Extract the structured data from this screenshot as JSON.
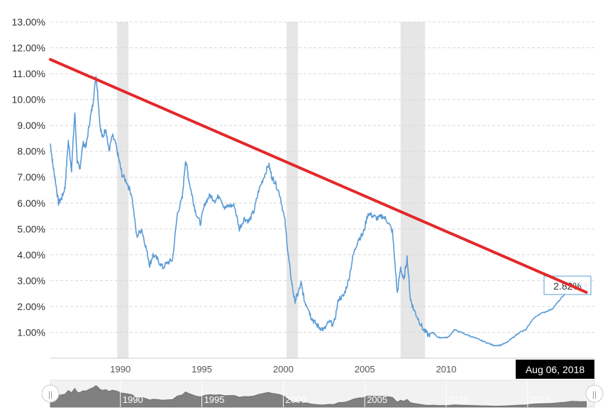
{
  "chart_data": {
    "type": "line",
    "title": "",
    "xlabel": "",
    "ylabel": "",
    "ylim": [
      0,
      13
    ],
    "xlim": [
      1985.7,
      2019.1
    ],
    "grid": "horizontal dashed",
    "y_ticks": [
      "1.00%",
      "2.00%",
      "3.00%",
      "4.00%",
      "5.00%",
      "6.00%",
      "7.00%",
      "8.00%",
      "9.00%",
      "10.00%",
      "11.00%",
      "12.00%",
      "13.00%"
    ],
    "x_ticks": [
      "1990",
      "1995",
      "2000",
      "2005",
      "2010"
    ],
    "recession_bands": [
      [
        1989.8,
        1990.5
      ],
      [
        2000.2,
        2000.9
      ],
      [
        2007.2,
        2008.7
      ]
    ],
    "series": [
      {
        "color": "#5b9bd5",
        "x": [
          1985.7,
          1985.85,
          1986.0,
          1986.2,
          1986.4,
          1986.6,
          1986.8,
          1987.0,
          1987.2,
          1987.35,
          1987.5,
          1987.7,
          1987.9,
          1988.1,
          1988.3,
          1988.5,
          1988.6,
          1988.75,
          1988.9,
          1989.1,
          1989.3,
          1989.5,
          1989.7,
          1989.9,
          1990.1,
          1990.4,
          1990.7,
          1991.0,
          1991.3,
          1991.6,
          1991.8,
          1992.0,
          1992.3,
          1992.6,
          1992.9,
          1993.2,
          1993.5,
          1993.8,
          1994.0,
          1994.2,
          1994.4,
          1994.6,
          1994.9,
          1995.2,
          1995.5,
          1995.8,
          1996.1,
          1996.4,
          1996.7,
          1997.0,
          1997.3,
          1997.6,
          1997.9,
          1998.2,
          1998.5,
          1998.8,
          1999.1,
          1999.3,
          1999.5,
          1999.8,
          2000.1,
          2000.3,
          2000.5,
          2000.7,
          2000.9,
          2001.1,
          2001.3,
          2001.5,
          2001.7,
          2001.9,
          2002.2,
          2002.5,
          2002.8,
          2003.1,
          2003.4,
          2003.7,
          2004.0,
          2004.3,
          2004.6,
          2004.9,
          2005.2,
          2005.5,
          2005.8,
          2006.1,
          2006.4,
          2006.7,
          2007.0,
          2007.2,
          2007.4,
          2007.6,
          2007.8,
          2008.0,
          2008.3,
          2008.6,
          2008.9,
          2009.2,
          2009.5,
          2009.8,
          2010.1,
          2010.5,
          2010.9,
          2011.3,
          2011.7,
          2012.1,
          2012.5,
          2012.9,
          2013.3,
          2013.7,
          2014.1,
          2014.5,
          2014.9,
          2015.3,
          2015.7,
          2016.1,
          2016.5,
          2016.9,
          2017.3,
          2017.7,
          2018.1,
          2018.4,
          2018.6
        ],
        "y": [
          8.3,
          7.5,
          6.9,
          6.0,
          6.2,
          6.6,
          8.4,
          7.3,
          9.5,
          7.6,
          7.3,
          8.3,
          8.2,
          9.1,
          9.8,
          10.9,
          10.3,
          9.0,
          8.5,
          8.9,
          8.0,
          8.6,
          8.3,
          7.7,
          7.1,
          6.8,
          6.3,
          4.7,
          5.0,
          4.2,
          3.6,
          4.0,
          3.8,
          3.5,
          3.7,
          3.8,
          5.6,
          6.2,
          7.7,
          6.9,
          6.3,
          5.7,
          5.2,
          6.0,
          6.3,
          6.1,
          6.3,
          5.8,
          5.9,
          5.9,
          5.0,
          5.4,
          5.3,
          5.7,
          6.5,
          7.0,
          7.5,
          7.0,
          6.8,
          6.3,
          5.3,
          4.0,
          3.0,
          2.2,
          2.5,
          2.9,
          2.2,
          2.0,
          1.6,
          1.4,
          1.2,
          1.1,
          1.4,
          1.3,
          2.3,
          2.4,
          3.0,
          4.0,
          4.6,
          4.8,
          5.6,
          5.5,
          5.4,
          5.5,
          5.3,
          4.9,
          2.5,
          3.5,
          3.0,
          3.9,
          2.3,
          1.9,
          1.5,
          1.1,
          0.9,
          1.0,
          0.8,
          0.8,
          0.8,
          1.1,
          1.0,
          0.9,
          0.8,
          0.7,
          0.6,
          0.5,
          0.5,
          0.6,
          0.8,
          1.0,
          1.1,
          1.5,
          1.7,
          1.8,
          1.9,
          2.2,
          2.5,
          3.0,
          2.85,
          2.82,
          2.82
        ]
      }
    ],
    "trendline": {
      "color": "#e3282a",
      "x": [
        1985.7,
        2018.6
      ],
      "y": [
        11.55,
        2.55
      ]
    },
    "last_value": {
      "x": 2018.6,
      "y": 2.82,
      "label": "2.82%"
    },
    "crosshair_date_label": "Aug 06, 2018",
    "navigator": {
      "ticks": [
        "1990",
        "1995",
        "2000",
        "2005",
        "2010",
        "2015"
      ],
      "handle_left_glyph": "||",
      "handle_right_glyph": "||"
    }
  }
}
